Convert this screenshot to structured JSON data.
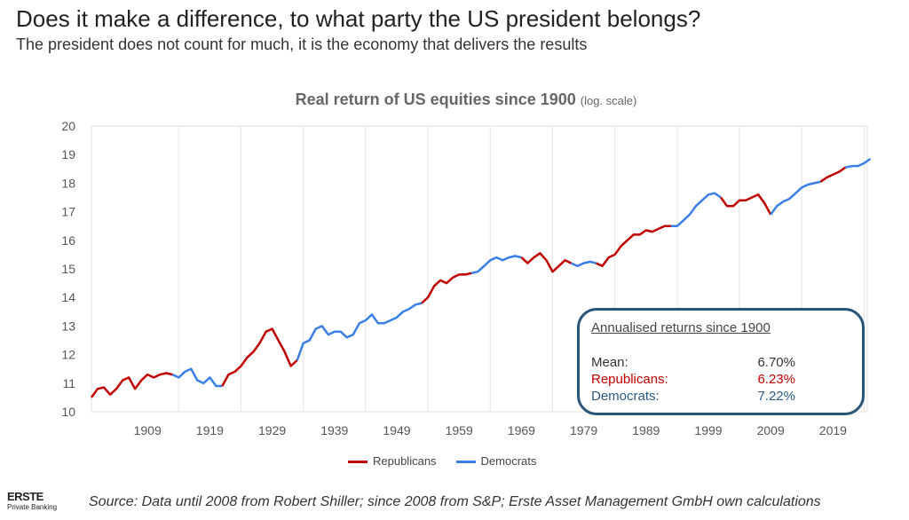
{
  "header": {
    "title": "Does it make a difference, to what party the US president belongs?",
    "subtitle": "The president does not count for much, it is the economy that delivers the results"
  },
  "chart_data": {
    "type": "line",
    "title": "Real return of US equities since 1900",
    "title_note": "(log. scale)",
    "ylim": [
      10,
      20
    ],
    "yticks": [
      10,
      11,
      12,
      13,
      14,
      15,
      16,
      17,
      18,
      19,
      20
    ],
    "xlim": [
      1900,
      2024.5
    ],
    "xticks": [
      1909,
      1919,
      1929,
      1939,
      1949,
      1959,
      1969,
      1979,
      1989,
      1999,
      2009,
      2019
    ],
    "grid": "vertical",
    "colors": {
      "Republicans": "#c00000",
      "Democrats": "#3a7fe8"
    },
    "legend": [
      "Republicans",
      "Democrats"
    ],
    "legend_position": "bottom",
    "segments": [
      {
        "party": "Republicans",
        "start": 1900,
        "values": [
          10.5,
          10.8,
          10.85,
          10.6,
          10.8,
          11.1,
          11.2,
          10.8,
          11.1,
          11.3,
          11.2,
          11.3,
          11.35,
          11.3
        ]
      },
      {
        "party": "Democrats",
        "start": 1913,
        "values": [
          11.3,
          11.2,
          11.4,
          11.5,
          11.1,
          11.0,
          11.2,
          10.9,
          10.9
        ]
      },
      {
        "party": "Republicans",
        "start": 1921,
        "values": [
          10.9,
          11.3,
          11.4,
          11.6,
          11.9,
          12.1,
          12.4,
          12.8,
          12.9,
          12.5,
          12.1,
          11.6,
          11.8
        ]
      },
      {
        "party": "Democrats",
        "start": 1933,
        "values": [
          11.8,
          12.4,
          12.5,
          12.9,
          13.0,
          12.7,
          12.8,
          12.8,
          12.6,
          12.7,
          13.1,
          13.2,
          13.4,
          13.1,
          13.1,
          13.2,
          13.3,
          13.5,
          13.6,
          13.75,
          13.8
        ]
      },
      {
        "party": "Republicans",
        "start": 1953,
        "values": [
          13.8,
          14.0,
          14.4,
          14.6,
          14.5,
          14.7,
          14.8,
          14.8,
          14.85
        ]
      },
      {
        "party": "Democrats",
        "start": 1961,
        "values": [
          14.85,
          14.9,
          15.1,
          15.3,
          15.4,
          15.3,
          15.4,
          15.45,
          15.4
        ]
      },
      {
        "party": "Republicans",
        "start": 1969,
        "values": [
          15.4,
          15.2,
          15.4,
          15.55,
          15.3,
          14.9,
          15.1,
          15.3,
          15.2
        ]
      },
      {
        "party": "Democrats",
        "start": 1977,
        "values": [
          15.2,
          15.1,
          15.2,
          15.25,
          15.2
        ]
      },
      {
        "party": "Republicans",
        "start": 1981,
        "values": [
          15.2,
          15.1,
          15.4,
          15.5,
          15.8,
          16.0,
          16.2,
          16.2,
          16.35,
          16.3,
          16.4,
          16.5,
          16.5
        ]
      },
      {
        "party": "Democrats",
        "start": 1993,
        "values": [
          16.5,
          16.5,
          16.7,
          16.9,
          17.2,
          17.4,
          17.6,
          17.65,
          17.5
        ]
      },
      {
        "party": "Republicans",
        "start": 2001,
        "values": [
          17.5,
          17.2,
          17.2,
          17.4,
          17.4,
          17.5,
          17.6,
          17.3,
          16.9
        ]
      },
      {
        "party": "Democrats",
        "start": 2009,
        "values": [
          16.9,
          17.2,
          17.35,
          17.45,
          17.65,
          17.85,
          17.95,
          18.0,
          18.05
        ]
      },
      {
        "party": "Republicans",
        "start": 2017,
        "values": [
          18.05,
          18.2,
          18.3,
          18.4,
          18.55
        ]
      },
      {
        "party": "Democrats",
        "start": 2021,
        "values": [
          18.55,
          18.6,
          18.6,
          18.7,
          18.85
        ]
      }
    ]
  },
  "summary": {
    "heading": "Annualised returns since 1900",
    "rows": [
      {
        "label": "Mean:",
        "value": "6.70%",
        "color": "#333333"
      },
      {
        "label": "Republicans:",
        "value": "6.23%",
        "color": "#c00000"
      },
      {
        "label": "Democrats:",
        "value": "7.22%",
        "color": "#2a5a85"
      }
    ]
  },
  "footer": {
    "source": "Source: Data until 2008 from Robert Shiller; since 2008 from S&P; Erste Asset Management GmbH own calculations",
    "logo_name": "ERSTE",
    "logo_sub": "Private Banking"
  }
}
